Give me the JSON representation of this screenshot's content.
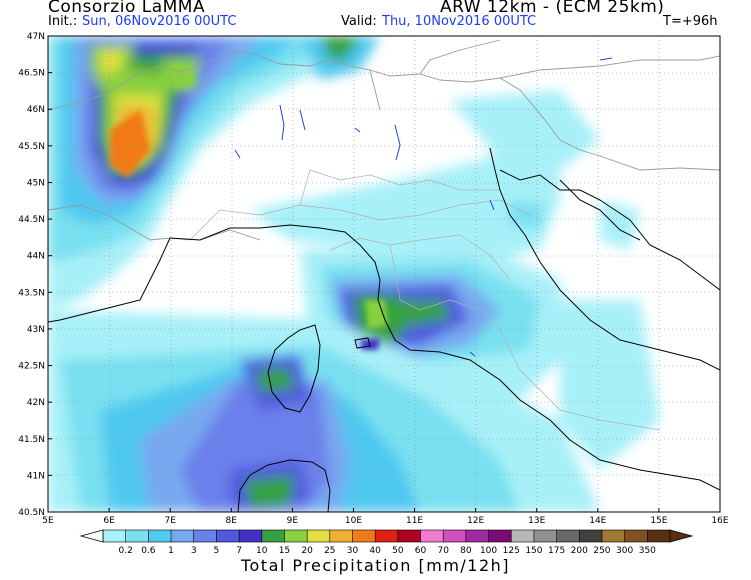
{
  "header": {
    "org": "Consorzio LaMMA",
    "model": "ARW 12km  -  (ECM 25km)",
    "init_label": "Init.:",
    "init_value": "Sun, 06Nov2016 00UTC",
    "valid_label": "Valid:",
    "valid_value": "Thu, 10Nov2016 00UTC",
    "timestep": "T=+96h"
  },
  "map": {
    "lat_labels": [
      "47N",
      "46.5N",
      "46N",
      "45.5N",
      "45N",
      "44.5N",
      "44N",
      "43.5N",
      "43N",
      "42.5N",
      "42N",
      "41.5N",
      "41N",
      "40.5N"
    ],
    "lon_labels": [
      "5E",
      "6E",
      "7E",
      "8E",
      "9E",
      "10E",
      "11E",
      "12E",
      "13E",
      "14E",
      "15E",
      "16E"
    ],
    "lat_range": [
      40.5,
      47
    ],
    "lon_range": [
      5,
      16
    ]
  },
  "colorbar": {
    "title": "Total Precipitation [mm/12h]",
    "labels": [
      "0.2",
      "0.6",
      "1",
      "3",
      "5",
      "7",
      "10",
      "15",
      "20",
      "25",
      "30",
      "40",
      "50",
      "60",
      "70",
      "80",
      "100",
      "125",
      "150",
      "175",
      "200",
      "250",
      "300",
      "350"
    ],
    "colors": [
      "#a8f0f8",
      "#78e0f0",
      "#50c8f0",
      "#78a8f0",
      "#6a80ea",
      "#5058e0",
      "#4030c8",
      "#34a040",
      "#88d040",
      "#e0e040",
      "#f0b030",
      "#f07a18",
      "#e02010",
      "#b00020",
      "#f07ad0",
      "#d050c0",
      "#a02aa0",
      "#7a0a78",
      "#b8b8b8",
      "#909090",
      "#686868",
      "#404040",
      "#a07830",
      "#805020",
      "#5a3010"
    ]
  }
}
